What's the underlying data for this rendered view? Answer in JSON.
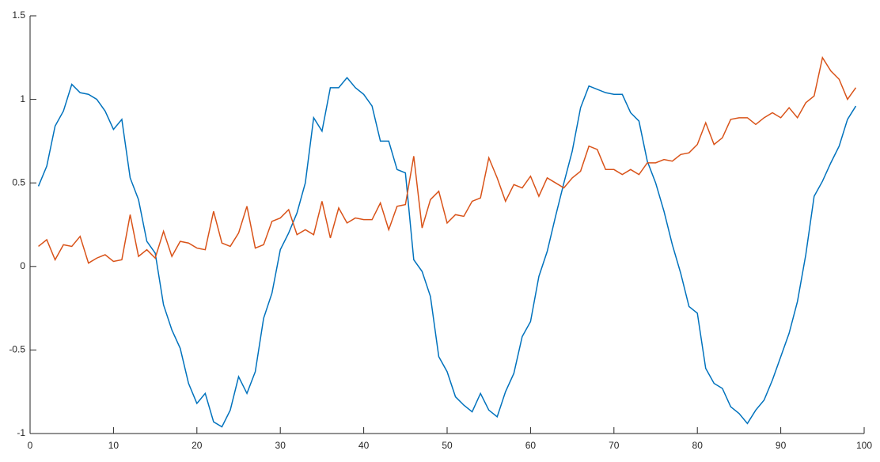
{
  "chart_data": {
    "type": "line",
    "x": [
      1,
      2,
      3,
      4,
      5,
      6,
      7,
      8,
      9,
      10,
      11,
      12,
      13,
      14,
      15,
      16,
      17,
      18,
      19,
      20,
      21,
      22,
      23,
      24,
      25,
      26,
      27,
      28,
      29,
      30,
      31,
      32,
      33,
      34,
      35,
      36,
      37,
      38,
      39,
      40,
      41,
      42,
      43,
      44,
      45,
      46,
      47,
      48,
      49,
      50,
      51,
      52,
      53,
      54,
      55,
      56,
      57,
      58,
      59,
      60,
      61,
      62,
      63,
      64,
      65,
      66,
      67,
      68,
      69,
      70,
      71,
      72,
      73,
      74,
      75,
      76,
      77,
      78,
      79,
      80,
      81,
      82,
      83,
      84,
      85,
      86,
      87,
      88,
      89,
      90,
      91,
      92,
      93,
      94,
      95,
      96,
      97,
      98,
      99
    ],
    "series": [
      {
        "color": "#0072BD",
        "values": [
          0.48,
          0.6,
          0.84,
          0.93,
          1.09,
          1.04,
          1.03,
          1.0,
          0.93,
          0.82,
          0.88,
          0.53,
          0.4,
          0.15,
          0.08,
          -0.23,
          -0.38,
          -0.49,
          -0.7,
          -0.82,
          -0.76,
          -0.93,
          -0.96,
          -0.86,
          -0.66,
          -0.76,
          -0.63,
          -0.31,
          -0.16,
          0.1,
          0.2,
          0.32,
          0.5,
          0.89,
          0.81,
          1.07,
          1.07,
          1.13,
          1.07,
          1.03,
          0.96,
          0.75,
          0.75,
          0.58,
          0.56,
          0.04,
          -0.03,
          -0.18,
          -0.54,
          -0.63,
          -0.78,
          -0.83,
          -0.87,
          -0.76,
          -0.86,
          -0.9,
          -0.75,
          -0.64,
          -0.42,
          -0.33,
          -0.06,
          0.09,
          0.3,
          0.5,
          0.69,
          0.95,
          1.08,
          1.06,
          1.04,
          1.03,
          1.03,
          0.92,
          0.87,
          0.63,
          0.5,
          0.33,
          0.13,
          -0.04,
          -0.24,
          -0.28,
          -0.61,
          -0.7,
          -0.73,
          -0.84,
          -0.88,
          -0.94,
          -0.86,
          -0.8,
          -0.68,
          -0.54,
          -0.4,
          -0.21,
          0.07,
          0.42,
          0.51,
          0.62,
          0.72,
          0.88,
          0.96
        ]
      },
      {
        "color": "#D95319",
        "values": [
          0.12,
          0.16,
          0.04,
          0.13,
          0.12,
          0.18,
          0.02,
          0.05,
          0.07,
          0.03,
          0.04,
          0.31,
          0.06,
          0.1,
          0.05,
          0.21,
          0.06,
          0.15,
          0.14,
          0.11,
          0.1,
          0.33,
          0.14,
          0.12,
          0.2,
          0.36,
          0.11,
          0.13,
          0.27,
          0.29,
          0.34,
          0.19,
          0.22,
          0.19,
          0.39,
          0.17,
          0.35,
          0.26,
          0.29,
          0.28,
          0.28,
          0.38,
          0.22,
          0.36,
          0.37,
          0.66,
          0.23,
          0.4,
          0.45,
          0.26,
          0.31,
          0.3,
          0.39,
          0.41,
          0.65,
          0.53,
          0.39,
          0.49,
          0.47,
          0.54,
          0.42,
          0.53,
          0.5,
          0.47,
          0.53,
          0.57,
          0.72,
          0.7,
          0.58,
          0.58,
          0.55,
          0.58,
          0.55,
          0.62,
          0.62,
          0.64,
          0.63,
          0.67,
          0.68,
          0.73,
          0.86,
          0.73,
          0.77,
          0.88,
          0.89,
          0.89,
          0.85,
          0.89,
          0.92,
          0.89,
          0.95,
          0.89,
          0.98,
          1.02,
          1.25,
          1.17,
          1.12,
          1.0,
          1.07
        ]
      }
    ],
    "xlim": [
      0,
      100
    ],
    "xticks": [
      0,
      10,
      20,
      30,
      40,
      50,
      60,
      70,
      80,
      90,
      100
    ],
    "ylim": [
      -1,
      1.5
    ],
    "yticks": [
      -1,
      -0.5,
      0,
      0.5,
      1,
      1.5
    ]
  }
}
